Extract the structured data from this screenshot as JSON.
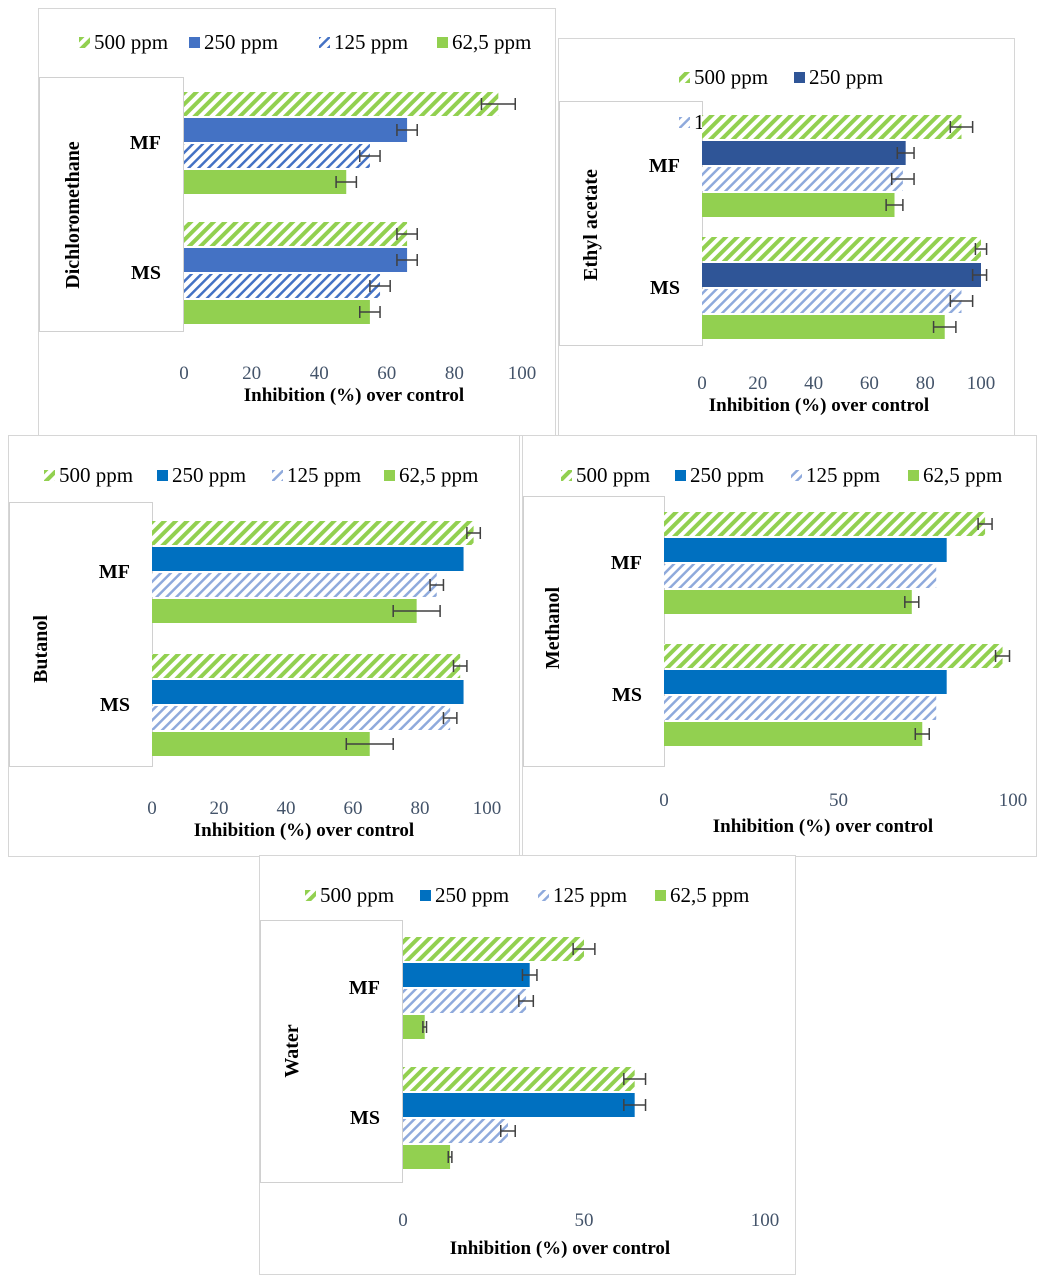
{
  "legend_labels": [
    "500 ppm",
    "250 ppm",
    "125 ppm",
    "62,5 ppm"
  ],
  "xlabel": "Inhibition (%) over control",
  "colors": {
    "green": "#92d050",
    "blue_dark": "#4472c4",
    "blue_navy": "#2f5597",
    "blue_bright": "#0070c0",
    "blue_light": "#8faadc",
    "error": "#404040"
  },
  "chart_data": [
    {
      "type": "bar",
      "orientation": "horizontal",
      "solvent": "Dichloromethane",
      "categories": [
        "MF",
        "MS"
      ],
      "xlim": [
        0,
        100
      ],
      "ticks": [
        "0",
        "20",
        "40",
        "60",
        "80",
        "100"
      ],
      "series": [
        {
          "name": "500 ppm",
          "values": [
            93,
            66
          ],
          "errors": [
            5,
            3
          ]
        },
        {
          "name": "250 ppm",
          "values": [
            66,
            66
          ],
          "errors": [
            3,
            3
          ]
        },
        {
          "name": "125 ppm",
          "values": [
            55,
            58
          ],
          "errors": [
            3,
            3
          ]
        },
        {
          "name": "62,5 ppm",
          "values": [
            48,
            55
          ],
          "errors": [
            3,
            3
          ]
        }
      ]
    },
    {
      "type": "bar",
      "orientation": "horizontal",
      "solvent": "Ethyl acetate",
      "categories": [
        "MF",
        "MS"
      ],
      "xlim": [
        0,
        100
      ],
      "ticks": [
        "0",
        "20",
        "40",
        "60",
        "80",
        "100"
      ],
      "series": [
        {
          "name": "500 ppm",
          "values": [
            93,
            100
          ],
          "errors": [
            4,
            2
          ]
        },
        {
          "name": "250 ppm",
          "values": [
            73,
            100
          ],
          "errors": [
            3,
            3
          ]
        },
        {
          "name": "125 ppm",
          "values": [
            72,
            93
          ],
          "errors": [
            4,
            4
          ]
        },
        {
          "name": "62,5 ppm",
          "values": [
            69,
            87
          ],
          "errors": [
            3,
            4
          ]
        }
      ]
    },
    {
      "type": "bar",
      "orientation": "horizontal",
      "solvent": "Butanol",
      "categories": [
        "MF",
        "MS"
      ],
      "xlim": [
        0,
        100
      ],
      "ticks": [
        "0",
        "20",
        "40",
        "60",
        "80",
        "100"
      ],
      "series": [
        {
          "name": "500 ppm",
          "values": [
            96,
            92
          ],
          "errors": [
            2,
            2
          ]
        },
        {
          "name": "250 ppm",
          "values": [
            93,
            93
          ],
          "errors": [
            0,
            0
          ]
        },
        {
          "name": "125 ppm",
          "values": [
            85,
            89
          ],
          "errors": [
            2,
            2
          ]
        },
        {
          "name": "62,5 ppm",
          "values": [
            79,
            65
          ],
          "errors": [
            7,
            7
          ]
        }
      ]
    },
    {
      "type": "bar",
      "orientation": "horizontal",
      "solvent": "Methanol",
      "categories": [
        "MF",
        "MS"
      ],
      "xlim": [
        0,
        100
      ],
      "ticks": [
        "0",
        "50",
        "100"
      ],
      "series": [
        {
          "name": "500 ppm",
          "values": [
            92,
            97
          ],
          "errors": [
            2,
            2
          ]
        },
        {
          "name": "250 ppm",
          "values": [
            81,
            81
          ],
          "errors": [
            0,
            0
          ]
        },
        {
          "name": "125 ppm",
          "values": [
            78,
            78
          ],
          "errors": [
            0,
            0
          ]
        },
        {
          "name": "62,5 ppm",
          "values": [
            71,
            74
          ],
          "errors": [
            2,
            2
          ]
        }
      ]
    },
    {
      "type": "bar",
      "orientation": "horizontal",
      "solvent": "Water",
      "categories": [
        "MF",
        "MS"
      ],
      "xlim": [
        0,
        100
      ],
      "ticks": [
        "0",
        "50",
        "100"
      ],
      "series": [
        {
          "name": "500 ppm",
          "values": [
            50,
            64
          ],
          "errors": [
            3,
            3
          ]
        },
        {
          "name": "250 ppm",
          "values": [
            35,
            64
          ],
          "errors": [
            2,
            3
          ]
        },
        {
          "name": "125 ppm",
          "values": [
            34,
            29
          ],
          "errors": [
            2,
            2
          ]
        },
        {
          "name": "62,5 ppm",
          "values": [
            6,
            13
          ],
          "errors": [
            0.5,
            0.5
          ]
        }
      ]
    }
  ]
}
